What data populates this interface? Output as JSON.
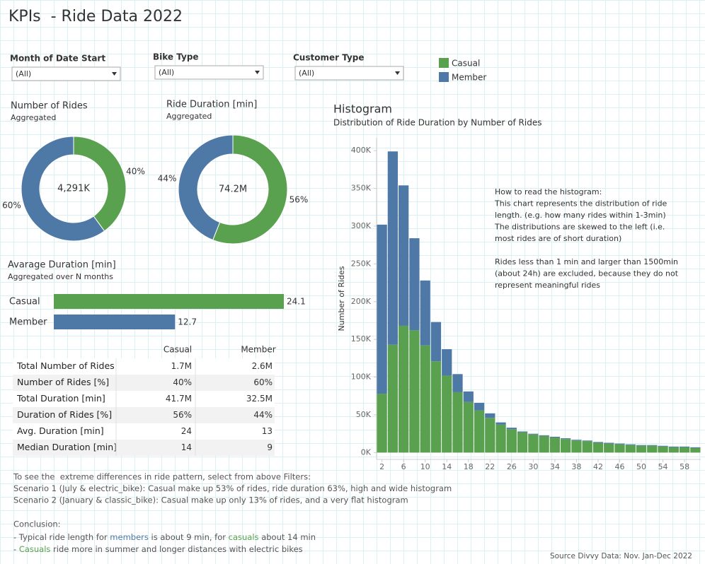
{
  "title": "KPIs  - Ride Data 2022",
  "filters": [
    {
      "label": "Month of Date Start",
      "value": "(All)"
    },
    {
      "label": "Bike Type",
      "value": "(All)"
    },
    {
      "label": "Customer Type",
      "value": "(All)"
    }
  ],
  "legend": [
    {
      "name": "Casual",
      "color": "#59a14f"
    },
    {
      "name": "Member",
      "color": "#4e79a7"
    }
  ],
  "chart_data": [
    {
      "type": "donut",
      "title": "Number of Rides",
      "subtitle": "Aggregated",
      "center_label": "4,291K",
      "categories": [
        "Casual",
        "Member"
      ],
      "values": [
        40,
        60
      ],
      "value_labels": [
        "40%",
        "60%"
      ],
      "colors": [
        "#59a14f",
        "#4e79a7"
      ]
    },
    {
      "type": "donut",
      "title": "Ride Duration [min]",
      "subtitle": "Aggregated",
      "center_label": "74.2M",
      "categories": [
        "Casual",
        "Member"
      ],
      "values": [
        56,
        44
      ],
      "value_labels": [
        "56%",
        "44%"
      ],
      "colors": [
        "#59a14f",
        "#4e79a7"
      ]
    },
    {
      "type": "hbar",
      "title": "Avarage Duration [min]",
      "subtitle": "Aggregated over N months",
      "categories": [
        "Casual",
        "Member"
      ],
      "values": [
        24.1,
        12.7
      ],
      "colors": [
        "#59a14f",
        "#4e79a7"
      ]
    },
    {
      "type": "histogram",
      "title": "Histogram",
      "subtitle": "Distribution of Ride Duration by Number of Rides",
      "y_label": "Number of Rides",
      "bins": [
        1,
        3,
        5,
        7,
        9,
        11,
        13,
        15,
        17,
        19,
        21,
        23,
        25,
        27,
        29,
        31,
        33,
        35,
        37,
        39,
        41,
        43,
        45,
        47,
        49,
        51,
        53,
        55,
        57,
        59,
        61
      ],
      "stacked": true,
      "series": [
        {
          "name": "Casual",
          "color": "#59a14f",
          "values": [
            78000,
            143000,
            168000,
            162000,
            142000,
            121000,
            102000,
            80000,
            67000,
            56000,
            46000,
            37000,
            31000,
            27000,
            24000,
            22000,
            20000,
            18000,
            16000,
            15000,
            13000,
            12000,
            11000,
            10000,
            9000,
            9000,
            8000,
            7000,
            7000,
            6000
          ]
        },
        {
          "name": "Member",
          "color": "#4e79a7",
          "values": [
            224000,
            256000,
            186000,
            122000,
            86000,
            52000,
            35000,
            24000,
            14000,
            10000,
            6000,
            3000,
            2000,
            1000,
            1000,
            1000,
            1000,
            1000,
            1000,
            1000,
            1000,
            1000,
            1000,
            1000,
            1000,
            1000,
            1000,
            1000,
            1000,
            1000
          ]
        }
      ],
      "xlim": [
        1,
        61
      ],
      "xticks": [
        2,
        6,
        10,
        14,
        18,
        22,
        26,
        30,
        34,
        38,
        42,
        46,
        50,
        54,
        58
      ],
      "ylim": [
        -9000,
        417000
      ],
      "yticks": [
        {
          "value": 0,
          "label": "0K"
        },
        {
          "value": 50000,
          "label": "50K"
        },
        {
          "value": 100000,
          "label": "100K"
        },
        {
          "value": 150000,
          "label": "150K"
        },
        {
          "value": 200000,
          "label": "200K"
        },
        {
          "value": 250000,
          "label": "250K"
        },
        {
          "value": 300000,
          "label": "300K"
        },
        {
          "value": 350000,
          "label": "350K"
        },
        {
          "value": 400000,
          "label": "400K"
        }
      ],
      "annotation": [
        [
          "How to read the histogram:",
          "This chart represents the distribution of ride",
          "length. (e.g. how many rides within 1-3min)",
          "The distributions are skewed to the left (i.e.",
          "most rides are of short duration)"
        ],
        [
          "Rides less than 1 min and larger than 1500min",
          "(about 24h) are excluded, because they do not",
          "represent meaningful rides"
        ]
      ]
    }
  ],
  "table": {
    "columns": [
      "Casual",
      "Member"
    ],
    "rows": [
      {
        "label": "Total Number of Rides",
        "values": [
          "1.7M",
          "2.6M"
        ]
      },
      {
        "label": "Number of Rides [%]",
        "values": [
          "40%",
          "60%"
        ]
      },
      {
        "label": "Total Duration [min]",
        "values": [
          "41.7M",
          "32.5M"
        ]
      },
      {
        "label": "Duration of Rides [%]",
        "values": [
          "56%",
          "44%"
        ]
      },
      {
        "label": "Avg. Duration [min]",
        "values": [
          "24",
          "13"
        ]
      },
      {
        "label": "Median Duration [min]",
        "values": [
          "14",
          "9"
        ]
      }
    ]
  },
  "notes": [
    "To see the  extreme differences in ride pattern, select from above Filters:",
    "Scenario 1 (July & electric_bike): Casual make up 53% of rides, ride duration 63%, high and wide histogram",
    "Scenario 2 (January & classic_bike): Casual make up only 13% of rides, and a very flat histogram"
  ],
  "conclusion": {
    "title": "Conclusion:",
    "lines": [
      [
        {
          "text": "- Typical ride length for "
        },
        {
          "text": "members",
          "color": "#4e79a7"
        },
        {
          "text": " is about 9 min, for "
        },
        {
          "text": "casuals",
          "color": "#59a14f"
        },
        {
          "text": " about 14 min"
        }
      ],
      [
        {
          "text": "- "
        },
        {
          "text": "Casuals",
          "color": "#59a14f"
        },
        {
          "text": " ride more in summer and longer distances with electric bikes"
        }
      ]
    ]
  },
  "source": "Source Divvy Data: Nov. Jan-Dec 2022"
}
